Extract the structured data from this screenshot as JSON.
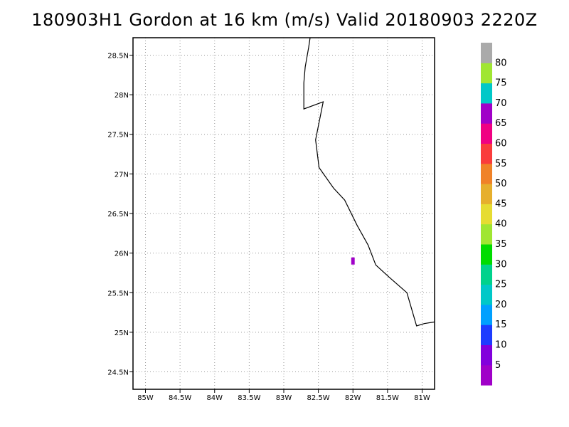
{
  "title": "180903H1 Gordon at 16 km (m/s) Valid 20180903 2220Z",
  "map": {
    "lon_range": [
      -85.18,
      -80.82
    ],
    "lat_range": [
      24.28,
      28.72
    ],
    "lon_ticks": [
      {
        "value": -85.0,
        "label": "85W"
      },
      {
        "value": -84.5,
        "label": "84.5W"
      },
      {
        "value": -84.0,
        "label": "84W"
      },
      {
        "value": -83.5,
        "label": "83.5W"
      },
      {
        "value": -83.0,
        "label": "83W"
      },
      {
        "value": -82.5,
        "label": "82.5W"
      },
      {
        "value": -82.0,
        "label": "82W"
      },
      {
        "value": -81.5,
        "label": "81.5W"
      },
      {
        "value": -81.0,
        "label": "81W"
      }
    ],
    "lat_ticks": [
      {
        "value": 28.5,
        "label": "28.5N"
      },
      {
        "value": 28.0,
        "label": "28N"
      },
      {
        "value": 27.5,
        "label": "27.5N"
      },
      {
        "value": 27.0,
        "label": "27N"
      },
      {
        "value": 26.5,
        "label": "26.5N"
      },
      {
        "value": 26.0,
        "label": "26N"
      },
      {
        "value": 25.5,
        "label": "25.5N"
      },
      {
        "value": 25.0,
        "label": "25N"
      },
      {
        "value": 24.5,
        "label": "24.5N"
      }
    ],
    "coastline": [
      [
        -82.62,
        28.72
      ],
      [
        -82.64,
        28.6
      ],
      [
        -82.69,
        28.35
      ],
      [
        -82.71,
        28.15
      ],
      [
        -82.71,
        27.82
      ],
      [
        -82.43,
        27.91
      ],
      [
        -82.54,
        27.43
      ],
      [
        -82.49,
        27.08
      ],
      [
        -82.28,
        26.82
      ],
      [
        -82.12,
        26.67
      ],
      [
        -81.94,
        26.35
      ],
      [
        -81.78,
        26.1
      ],
      [
        -81.67,
        25.85
      ],
      [
        -81.47,
        25.69
      ],
      [
        -81.22,
        25.5
      ],
      [
        -81.08,
        25.08
      ],
      [
        -80.97,
        25.11
      ],
      [
        -80.82,
        25.13
      ]
    ],
    "data_cells": [
      {
        "lon": -82.0,
        "lat": 25.9,
        "dlon": 0.05,
        "dlat": 0.09,
        "value": 3,
        "color": "#a000c8"
      }
    ]
  },
  "colorbar": {
    "labels": [
      "5",
      "10",
      "15",
      "20",
      "25",
      "30",
      "35",
      "40",
      "45",
      "50",
      "55",
      "60",
      "65",
      "70",
      "75",
      "80"
    ],
    "colors": [
      "#a000c8",
      "#8200dc",
      "#1e3cff",
      "#00a0ff",
      "#00c8c8",
      "#00d28c",
      "#00dc00",
      "#a0e632",
      "#e6dc32",
      "#e6af2d",
      "#f08228",
      "#fa3c3c",
      "#f00082",
      "#a000c8",
      "#00c8c8",
      "#a0e632",
      "#aaaaaa"
    ]
  }
}
